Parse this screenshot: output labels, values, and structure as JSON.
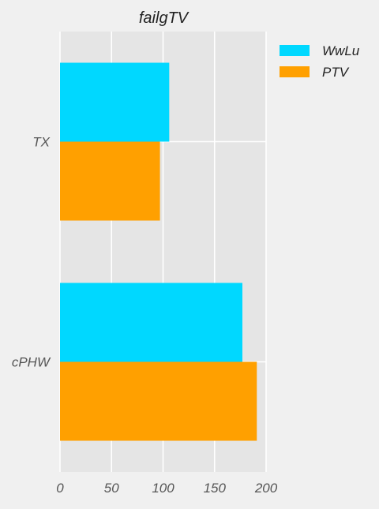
{
  "chart_data": {
    "type": "bar",
    "orientation": "horizontal",
    "title": "failgTV",
    "categories": [
      "TX",
      "cPHW"
    ],
    "series": [
      {
        "name": "WwLu",
        "values": [
          106,
          177
        ],
        "color": "#00d8ff"
      },
      {
        "name": "PTV",
        "values": [
          97,
          191
        ],
        "color": "#ffa000"
      }
    ],
    "xticks": [
      "0",
      "50",
      "100",
      "150",
      "200"
    ],
    "xlim": [
      0,
      200
    ],
    "xlabel": "",
    "ylabel": "",
    "grid": true,
    "legend_position": "top-right",
    "plot_background": "#e5e5e5",
    "figure_background": "#f0f0f0"
  }
}
